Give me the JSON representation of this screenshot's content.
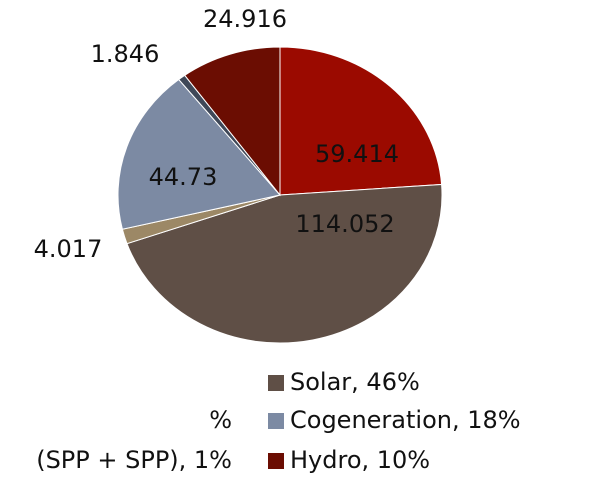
{
  "chart_data": {
    "type": "pie",
    "values": [
      59.414,
      114.052,
      4.017,
      44.73,
      1.846,
      24.916
    ],
    "colors": [
      "#9b0a00",
      "#5f4f46",
      "#9c8866",
      "#7c8aa3",
      "#3f4858",
      "#6b0d02"
    ],
    "legend": [
      {
        "label": "%",
        "color": null
      },
      {
        "label": "(SPP + SPP), 1%",
        "color": null
      },
      {
        "label": "Solar, 46%",
        "color": "#5f4f46"
      },
      {
        "label": "Cogeneration, 18%",
        "color": "#7c8aa3"
      },
      {
        "label": "Hydro, 10%",
        "color": "#6b0d02"
      }
    ]
  }
}
